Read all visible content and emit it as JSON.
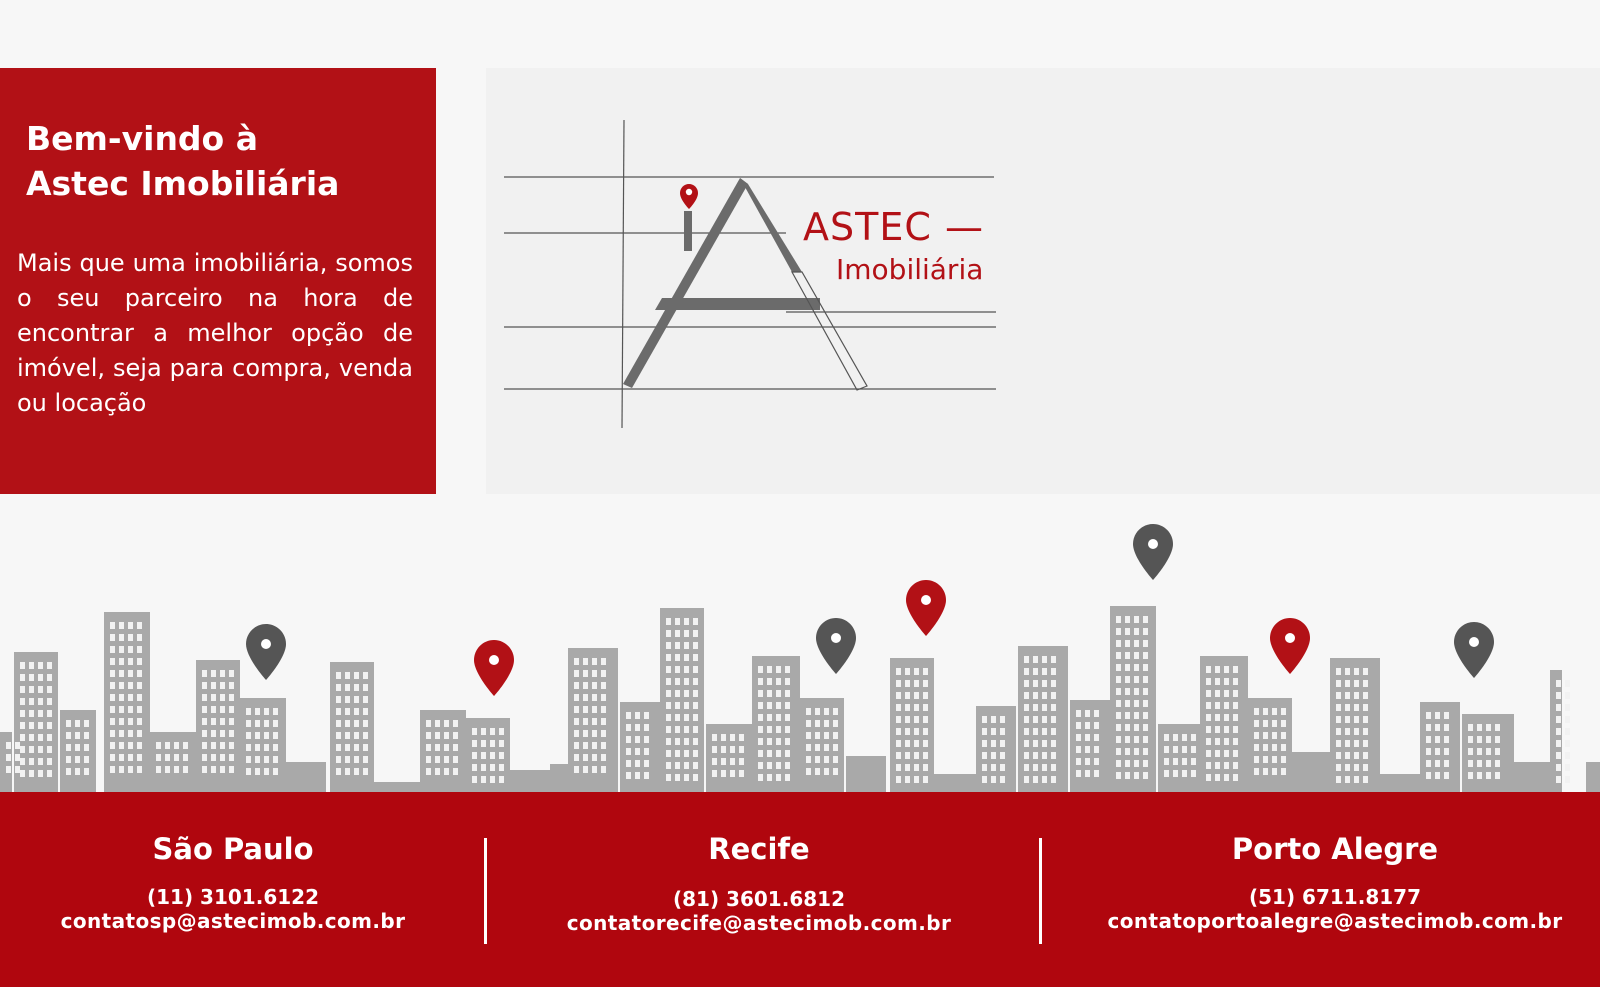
{
  "welcome": {
    "title_line1": "Bem-vindo à",
    "title_line2": "Astec Imobiliária",
    "text": "Mais que uma imobiliária, somos o seu parceiro na hora de encontrar a melhor opção de imóvel, seja para compra, venda ou locação"
  },
  "logo": {
    "name": "ASTEC —",
    "sub": "Imobiliária",
    "icon": "map-pin-icon"
  },
  "skyline": {
    "icon": "location-pin-icon",
    "colors": {
      "building": "#a9a9a9",
      "pin_red": "#b21116",
      "pin_gray": "#555555"
    }
  },
  "offices": [
    {
      "city": "São Paulo",
      "phone": "(11) 3101.6122",
      "email": "contatosp@astecimob.com.br"
    },
    {
      "city": "Recife",
      "phone": "(81) 3601.6812",
      "email": "contatorecife@astecimob.com.br"
    },
    {
      "city": "Porto Alegre",
      "phone": "(51) 6711.8177",
      "email": "contatoportoalegre@astecimob.com.br"
    }
  ],
  "colors": {
    "brand_red": "#b21116",
    "footer_red": "#b0060e",
    "panel_gray": "#f1f1f1"
  }
}
